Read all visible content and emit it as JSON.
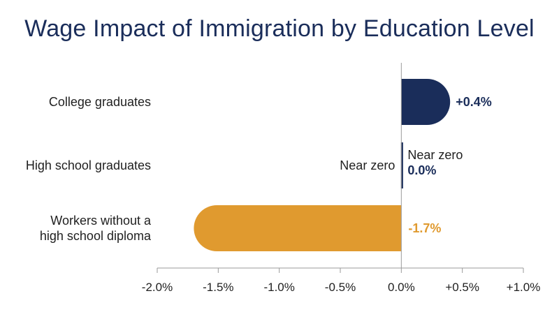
{
  "chart_data": {
    "type": "bar",
    "orientation": "horizontal",
    "title": "Wage Impact of Immigration by Education Level",
    "xlabel": "",
    "ylabel": "",
    "xlim": [
      -2.0,
      1.0
    ],
    "ticks": [
      -2.0,
      -1.5,
      -1.0,
      -0.5,
      0.0,
      0.5,
      1.0
    ],
    "tick_labels": [
      "-2.0%",
      "-1.5%",
      "-1.0%",
      "-0.5%",
      "0.0%",
      "+0.5%",
      "+1.0%"
    ],
    "grid": false,
    "categories": [
      {
        "label_lines": [
          "College graduates"
        ],
        "value": 0.4,
        "value_label": "+0.4%",
        "color": "#1a2d5a"
      },
      {
        "label_lines": [
          "High school graduates"
        ],
        "value": 0.0,
        "value_label": "0.0%",
        "value_note": "Near zero",
        "left_note": "Near zero",
        "color": "#1a2d5a"
      },
      {
        "label_lines": [
          "Workers without a",
          "high school diploma"
        ],
        "value": -1.7,
        "value_label": "-1.7%",
        "color": "#e09a2f"
      }
    ]
  }
}
